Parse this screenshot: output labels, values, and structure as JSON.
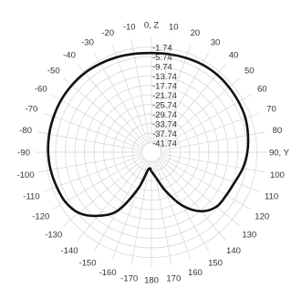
{
  "chart_data": {
    "type": "polar",
    "angular_unit": "degrees",
    "zero_label": "0, Z",
    "angle_ticks": [
      -170,
      -160,
      -150,
      -140,
      -130,
      -120,
      -110,
      -100,
      -90,
      -80,
      -70,
      -60,
      -50,
      -40,
      -30,
      -20,
      -10,
      0,
      10,
      20,
      30,
      40,
      50,
      60,
      70,
      80,
      90,
      100,
      110,
      120,
      130,
      140,
      150,
      160,
      170,
      180
    ],
    "angle_tick_labels": {
      "-170": "-170",
      "-160": "-160",
      "-150": "-150",
      "-140": "-140",
      "-130": "-130",
      "-120": "-120",
      "-110": "-110",
      "-100": "-100",
      "-90": "-90",
      "-80": "-80",
      "-70": "-70",
      "-60": "-60",
      "-50": "-50",
      "-40": "-40",
      "-30": "-30",
      "-20": "-20",
      "-10": "-10",
      "0": "0, Z",
      "10": "10",
      "20": "20",
      "30": "30",
      "40": "40",
      "50": "50",
      "60": "60",
      "70": "70",
      "80": "80",
      "90": "90, Y",
      "100": "100",
      "110": "110",
      "120": "120",
      "130": "130",
      "140": "140",
      "150": "150",
      "160": "160",
      "170": "170",
      "180": "180"
    },
    "radial_ticks": [
      -1.74,
      -5.74,
      -9.74,
      -13.74,
      -17.74,
      -21.74,
      -25.74,
      -29.74,
      -33.74,
      -37.74,
      -41.74
    ],
    "radial_tick_labels": [
      "-1.74",
      "-5.74",
      "-9.74",
      "-13.74",
      "-17.74",
      "-21.74",
      "-25.74",
      "-29.74",
      "-33.74",
      "-37.74",
      "-41.74"
    ],
    "radial_range": [
      -45.74,
      2.26
    ],
    "grid": true,
    "series": [
      {
        "angles": [
          -180,
          -170,
          -160,
          -150,
          -140,
          -130,
          -120,
          -110,
          -100,
          -90,
          -80,
          -70,
          -60,
          -50,
          -40,
          -30,
          -20,
          -10,
          0,
          10,
          20,
          30,
          40,
          50,
          60,
          70,
          80,
          90,
          100,
          110,
          120,
          130,
          140,
          150,
          160,
          170,
          180
        ],
        "values": [
          -37.74,
          -38.5,
          -29.5,
          -17.5,
          -11.0,
          -6.2,
          -4.2,
          -3.6,
          -3.0,
          -2.6,
          -2.4,
          -2.3,
          -2.2,
          -2.3,
          -2.5,
          -3.0,
          -3.5,
          -4.0,
          -4.3,
          -4.1,
          -3.8,
          -3.4,
          -3.3,
          -3.5,
          -3.7,
          -4.0,
          -4.8,
          -5.7,
          -7.0,
          -8.8,
          -9.7,
          -10.3,
          -13.5,
          -20.0,
          -28.5,
          -35.0,
          -37.74
        ]
      }
    ]
  }
}
